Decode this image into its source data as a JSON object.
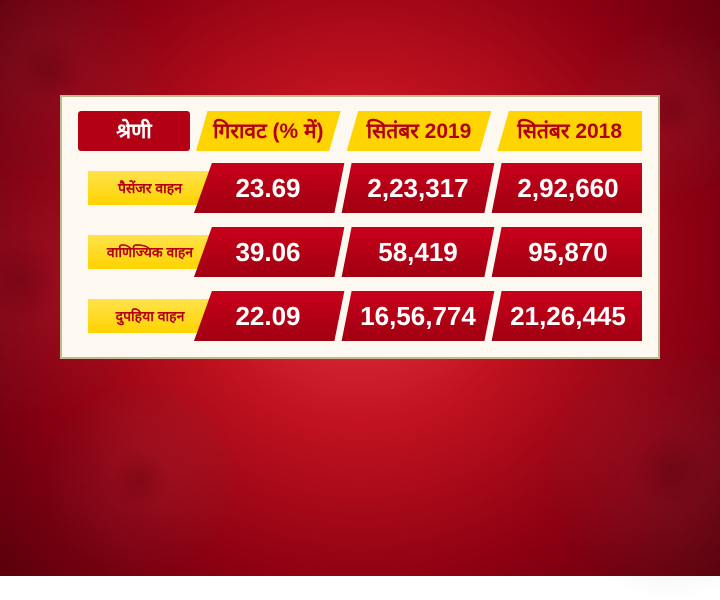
{
  "background": {
    "gradient_center": "#e63946",
    "gradient_mid": "#c1121f",
    "gradient_edge": "#5a000c"
  },
  "table": {
    "panel_bg": "#fdf9f0",
    "panel_border": "#c0b890",
    "header": {
      "category_label": "श्रेणी",
      "category_bg": "#b40015",
      "category_fg": "#ffffff",
      "col_bg": "#ffd400",
      "col_fg": "#b40015",
      "columns": [
        "गिरावट (% में)",
        "सितंबर 2019",
        "सितंबर 2018"
      ],
      "fontsize": 21
    },
    "row_style": {
      "cat_bg": "#ffd400",
      "cat_fg": "#b40015",
      "cat_fontsize": 14,
      "value_bg_top": "#c8001a",
      "value_bg_bottom": "#a00012",
      "value_fg": "#ffffff",
      "value_fontsize": 26
    },
    "rows": [
      {
        "category": "पैसेंजर वाहन",
        "decline_pct": "23.69",
        "sep2019": "2,23,317",
        "sep2018": "2,92,660"
      },
      {
        "category": "वाणिज्यिक वाहन",
        "decline_pct": "39.06",
        "sep2019": "58,419",
        "sep2018": "95,870"
      },
      {
        "category": "दुपहिया वाहन",
        "decline_pct": "22.09",
        "sep2019": "16,56,774",
        "sep2018": "21,26,445"
      }
    ]
  }
}
